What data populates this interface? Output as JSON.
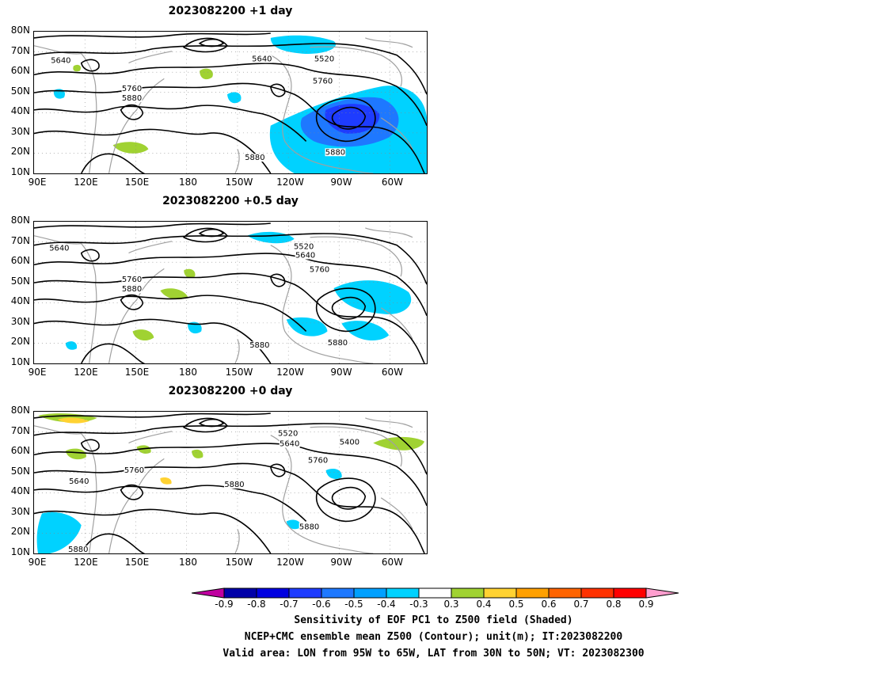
{
  "panels": [
    {
      "title": "2023082200  +1 day",
      "contour_labels": [
        "5640",
        "5640",
        "5520",
        "5760",
        "5760",
        "5880",
        "5880",
        "5880"
      ]
    },
    {
      "title": "2023082200  +0.5 day",
      "contour_labels": [
        "5640",
        "5520",
        "5640",
        "5760",
        "5760",
        "5880",
        "5880",
        "5880"
      ]
    },
    {
      "title": "2023082200  +0 day",
      "contour_labels": [
        "5520",
        "5640",
        "5400",
        "5760",
        "5760",
        "5640",
        "5880",
        "5880",
        "5880"
      ]
    }
  ],
  "axes": {
    "lat_ticks": [
      "80N",
      "70N",
      "60N",
      "50N",
      "40N",
      "30N",
      "20N",
      "10N"
    ],
    "lon_ticks": [
      "90E",
      "120E",
      "150E",
      "180",
      "150W",
      "120W",
      "90W",
      "60W"
    ]
  },
  "colorbar": {
    "levels": [
      "-0.9",
      "-0.8",
      "-0.7",
      "-0.6",
      "-0.5",
      "-0.4",
      "-0.3",
      "0.3",
      "0.4",
      "0.5",
      "0.6",
      "0.7",
      "0.8",
      "0.9"
    ],
    "colors": [
      "#0000a8",
      "#0000e0",
      "#1e3cff",
      "#1e78ff",
      "#00a0ff",
      "#00d2ff",
      "#ffffff",
      "#a0d232",
      "#ffd232",
      "#ffa000",
      "#ff6400",
      "#ff3200",
      "#ff0000"
    ],
    "low_end_color": "#c000a0",
    "high_end_color": "#ff9ecf"
  },
  "caption": {
    "line1": "Sensitivity of EOF PC1 to Z500 field (Shaded)",
    "line2": "NCEP+CMC ensemble mean Z500 (Contour); unit(m); IT:2023082200",
    "line3": "Valid area: LON from 95W to 65W, LAT from 30N to 50N; VT: 2023082300"
  }
}
